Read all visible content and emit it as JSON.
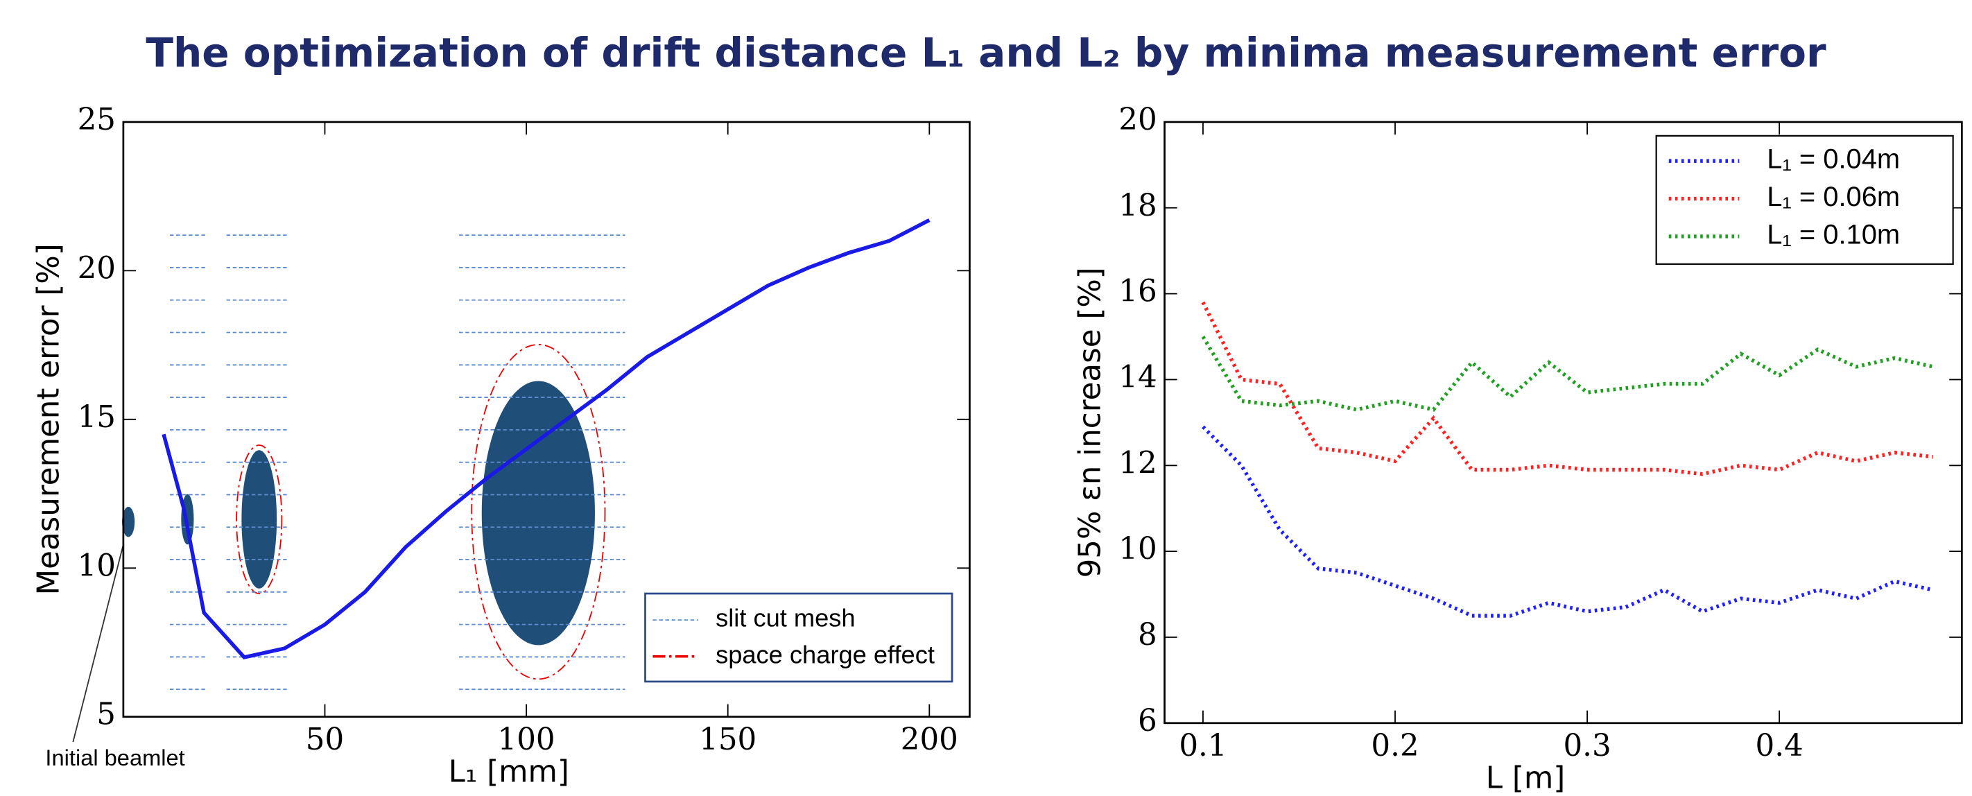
{
  "title": "The optimization of drift distance L₁ and L₂ by minima measurement error",
  "chart_data": [
    {
      "type": "line",
      "xlabel": "L₁ [mm]",
      "ylabel": "Measurement error [%]",
      "xlim": [
        0,
        210
      ],
      "ylim": [
        5,
        25
      ],
      "xticks": [
        50,
        100,
        150,
        200
      ],
      "yticks": [
        5,
        10,
        15,
        20,
        25
      ],
      "annotations": [
        "Initial beamlet"
      ],
      "legend_items": [
        "slit cut mesh",
        "space charge effect"
      ],
      "series": [
        {
          "color": "#1a1ae6",
          "linestyle": "solid",
          "x": [
            10,
            15,
            20,
            30,
            40,
            50,
            60,
            70,
            80,
            90,
            100,
            110,
            120,
            130,
            140,
            150,
            160,
            170,
            180,
            190,
            200
          ],
          "values": [
            14.5,
            12,
            8.5,
            7,
            7.3,
            8.1,
            9.2,
            10.7,
            11.9,
            13,
            14,
            15,
            16,
            17.1,
            17.9,
            18.7,
            19.5,
            20.1,
            20.6,
            21,
            21.7
          ]
        }
      ]
    },
    {
      "type": "line",
      "xlabel": "L [m]",
      "ylabel": "95% εn increase [%]",
      "xlim": [
        0.08,
        0.495
      ],
      "ylim": [
        6,
        20
      ],
      "xticks": [
        0.1,
        0.2,
        0.3,
        0.4
      ],
      "yticks": [
        6,
        8,
        10,
        12,
        14,
        16,
        18,
        20
      ],
      "legend": "upper right",
      "series": [
        {
          "name": "L₁ = 0.04m",
          "color": "#2020ff",
          "linestyle": "dotted",
          "x": [
            0.1,
            0.12,
            0.14,
            0.16,
            0.18,
            0.2,
            0.22,
            0.24,
            0.26,
            0.28,
            0.3,
            0.32,
            0.34,
            0.36,
            0.38,
            0.4,
            0.42,
            0.44,
            0.46,
            0.48
          ],
          "values": [
            12.9,
            12.0,
            10.5,
            9.6,
            9.5,
            9.2,
            8.9,
            8.5,
            8.5,
            8.8,
            8.6,
            8.7,
            9.1,
            8.6,
            8.9,
            8.8,
            9.1,
            8.9,
            9.3,
            9.1
          ]
        },
        {
          "name": "L₁ = 0.06m",
          "color": "#ff2020",
          "linestyle": "dotted",
          "x": [
            0.1,
            0.12,
            0.14,
            0.16,
            0.18,
            0.2,
            0.22,
            0.24,
            0.26,
            0.28,
            0.3,
            0.32,
            0.34,
            0.36,
            0.38,
            0.4,
            0.42,
            0.44,
            0.46,
            0.48
          ],
          "values": [
            15.8,
            14.0,
            13.9,
            12.4,
            12.3,
            12.1,
            13.1,
            11.9,
            11.9,
            12.0,
            11.9,
            11.9,
            11.9,
            11.8,
            12.0,
            11.9,
            12.3,
            12.1,
            12.3,
            12.2
          ]
        },
        {
          "name": "L₁ = 0.10m",
          "color": "#20a020",
          "linestyle": "dotted",
          "x": [
            0.1,
            0.12,
            0.14,
            0.16,
            0.18,
            0.2,
            0.22,
            0.24,
            0.26,
            0.28,
            0.3,
            0.32,
            0.34,
            0.36,
            0.38,
            0.4,
            0.42,
            0.44,
            0.46,
            0.48
          ],
          "values": [
            15.0,
            13.5,
            13.4,
            13.5,
            13.3,
            13.5,
            13.3,
            14.4,
            13.6,
            14.4,
            13.7,
            13.8,
            13.9,
            13.9,
            14.6,
            14.1,
            14.7,
            14.3,
            14.5,
            14.3
          ]
        }
      ]
    }
  ]
}
